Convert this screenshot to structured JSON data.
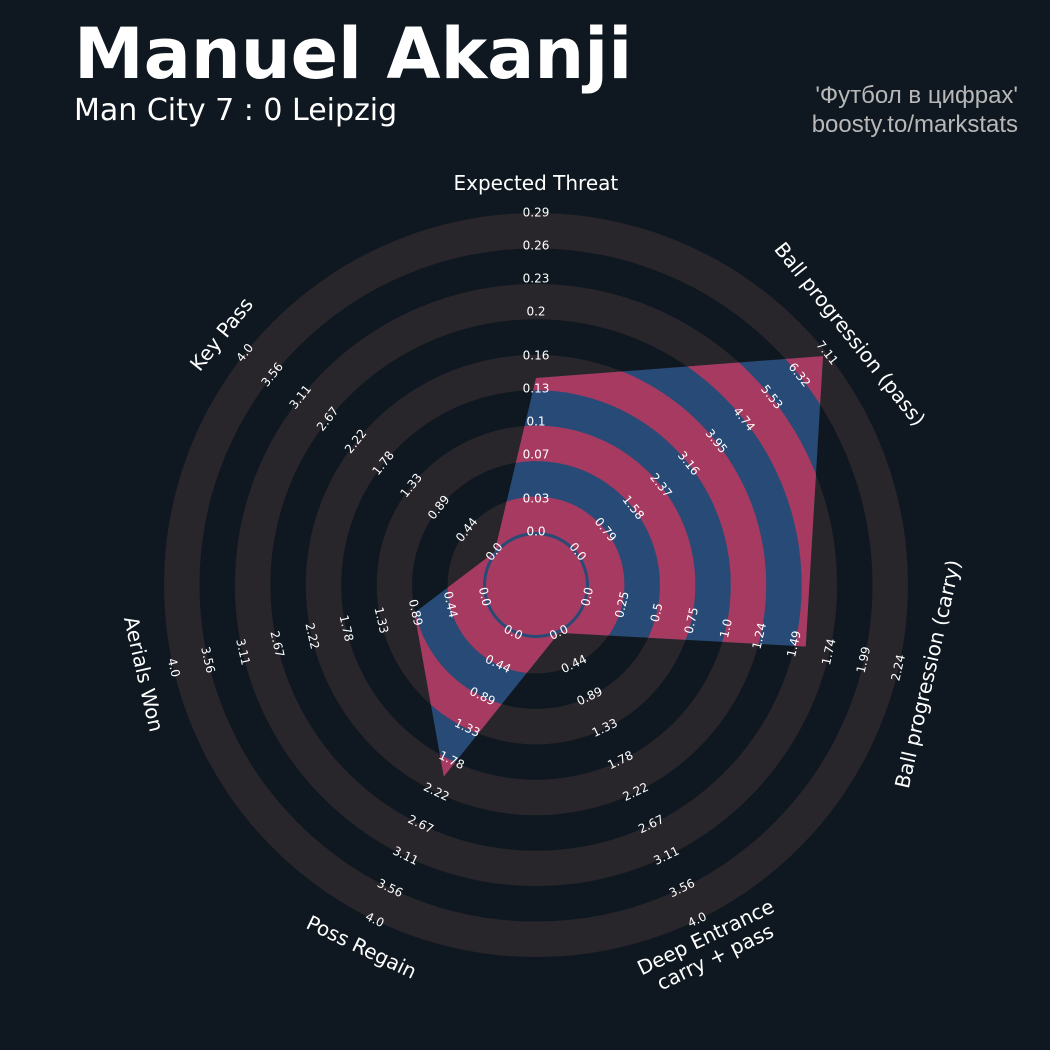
{
  "chart_data": {
    "type": "radar",
    "title": "Manuel Akanji",
    "subtitle": "Man City 7 : 0 Leipzig",
    "credits": [
      "'Футбол в цифрах'",
      "boosty.to/markstats"
    ],
    "categories": [
      "Expected Threat",
      "Ball progression (pass)",
      "Ball progression (carry)",
      "Deep Entrance\ncarry + pass",
      "Poss Regain",
      "Aerials Won",
      "Key Pass"
    ],
    "ranges": [
      [
        0,
        0.29
      ],
      [
        0,
        7.11
      ],
      [
        0,
        2.24
      ],
      [
        0,
        4
      ],
      [
        0,
        4
      ],
      [
        0,
        4
      ],
      [
        0,
        4
      ]
    ],
    "ticks": [
      [
        {
          "value": 0,
          "label": "0.0"
        },
        0.03,
        0.07,
        0.1,
        0.13,
        0.16,
        0.2,
        0.23,
        0.26,
        0.29
      ],
      [
        {
          "value": 0,
          "label": "0.0"
        },
        0.79,
        1.58,
        2.37,
        3.16,
        3.95,
        4.74,
        5.53,
        6.32,
        7.11
      ],
      [
        {
          "value": 0,
          "label": "0.0"
        },
        0.25,
        0.5,
        0.75,
        {
          "value": 1,
          "label": "1.0"
        },
        1.24,
        1.49,
        1.74,
        1.99,
        2.24
      ],
      [
        {
          "value": 0,
          "label": "0.0"
        },
        0.44,
        0.89,
        1.33,
        1.78,
        2.22,
        2.67,
        3.11,
        3.56,
        {
          "value": 4,
          "label": "4.0"
        }
      ],
      [
        {
          "value": 0,
          "label": "0.0"
        },
        0.44,
        0.89,
        1.33,
        1.78,
        2.22,
        2.67,
        3.11,
        3.56,
        {
          "value": 4,
          "label": "4.0"
        }
      ],
      [
        {
          "value": 0,
          "label": "0.0"
        },
        0.44,
        0.89,
        1.33,
        1.78,
        2.22,
        2.67,
        3.11,
        3.56,
        {
          "value": 4,
          "label": "4.0"
        }
      ],
      [
        {
          "value": 0,
          "label": "0.0"
        },
        0.44,
        0.89,
        1.33,
        1.78,
        2.22,
        2.67,
        3.11,
        3.56,
        {
          "value": 4,
          "label": "4.0"
        }
      ]
    ],
    "values": [
      0.14,
      7,
      1.57,
      0,
      2,
      0.9,
      0
    ],
    "color": "#284a76",
    "highlight_color": "#a63a60",
    "ring_color": "#28252b"
  }
}
